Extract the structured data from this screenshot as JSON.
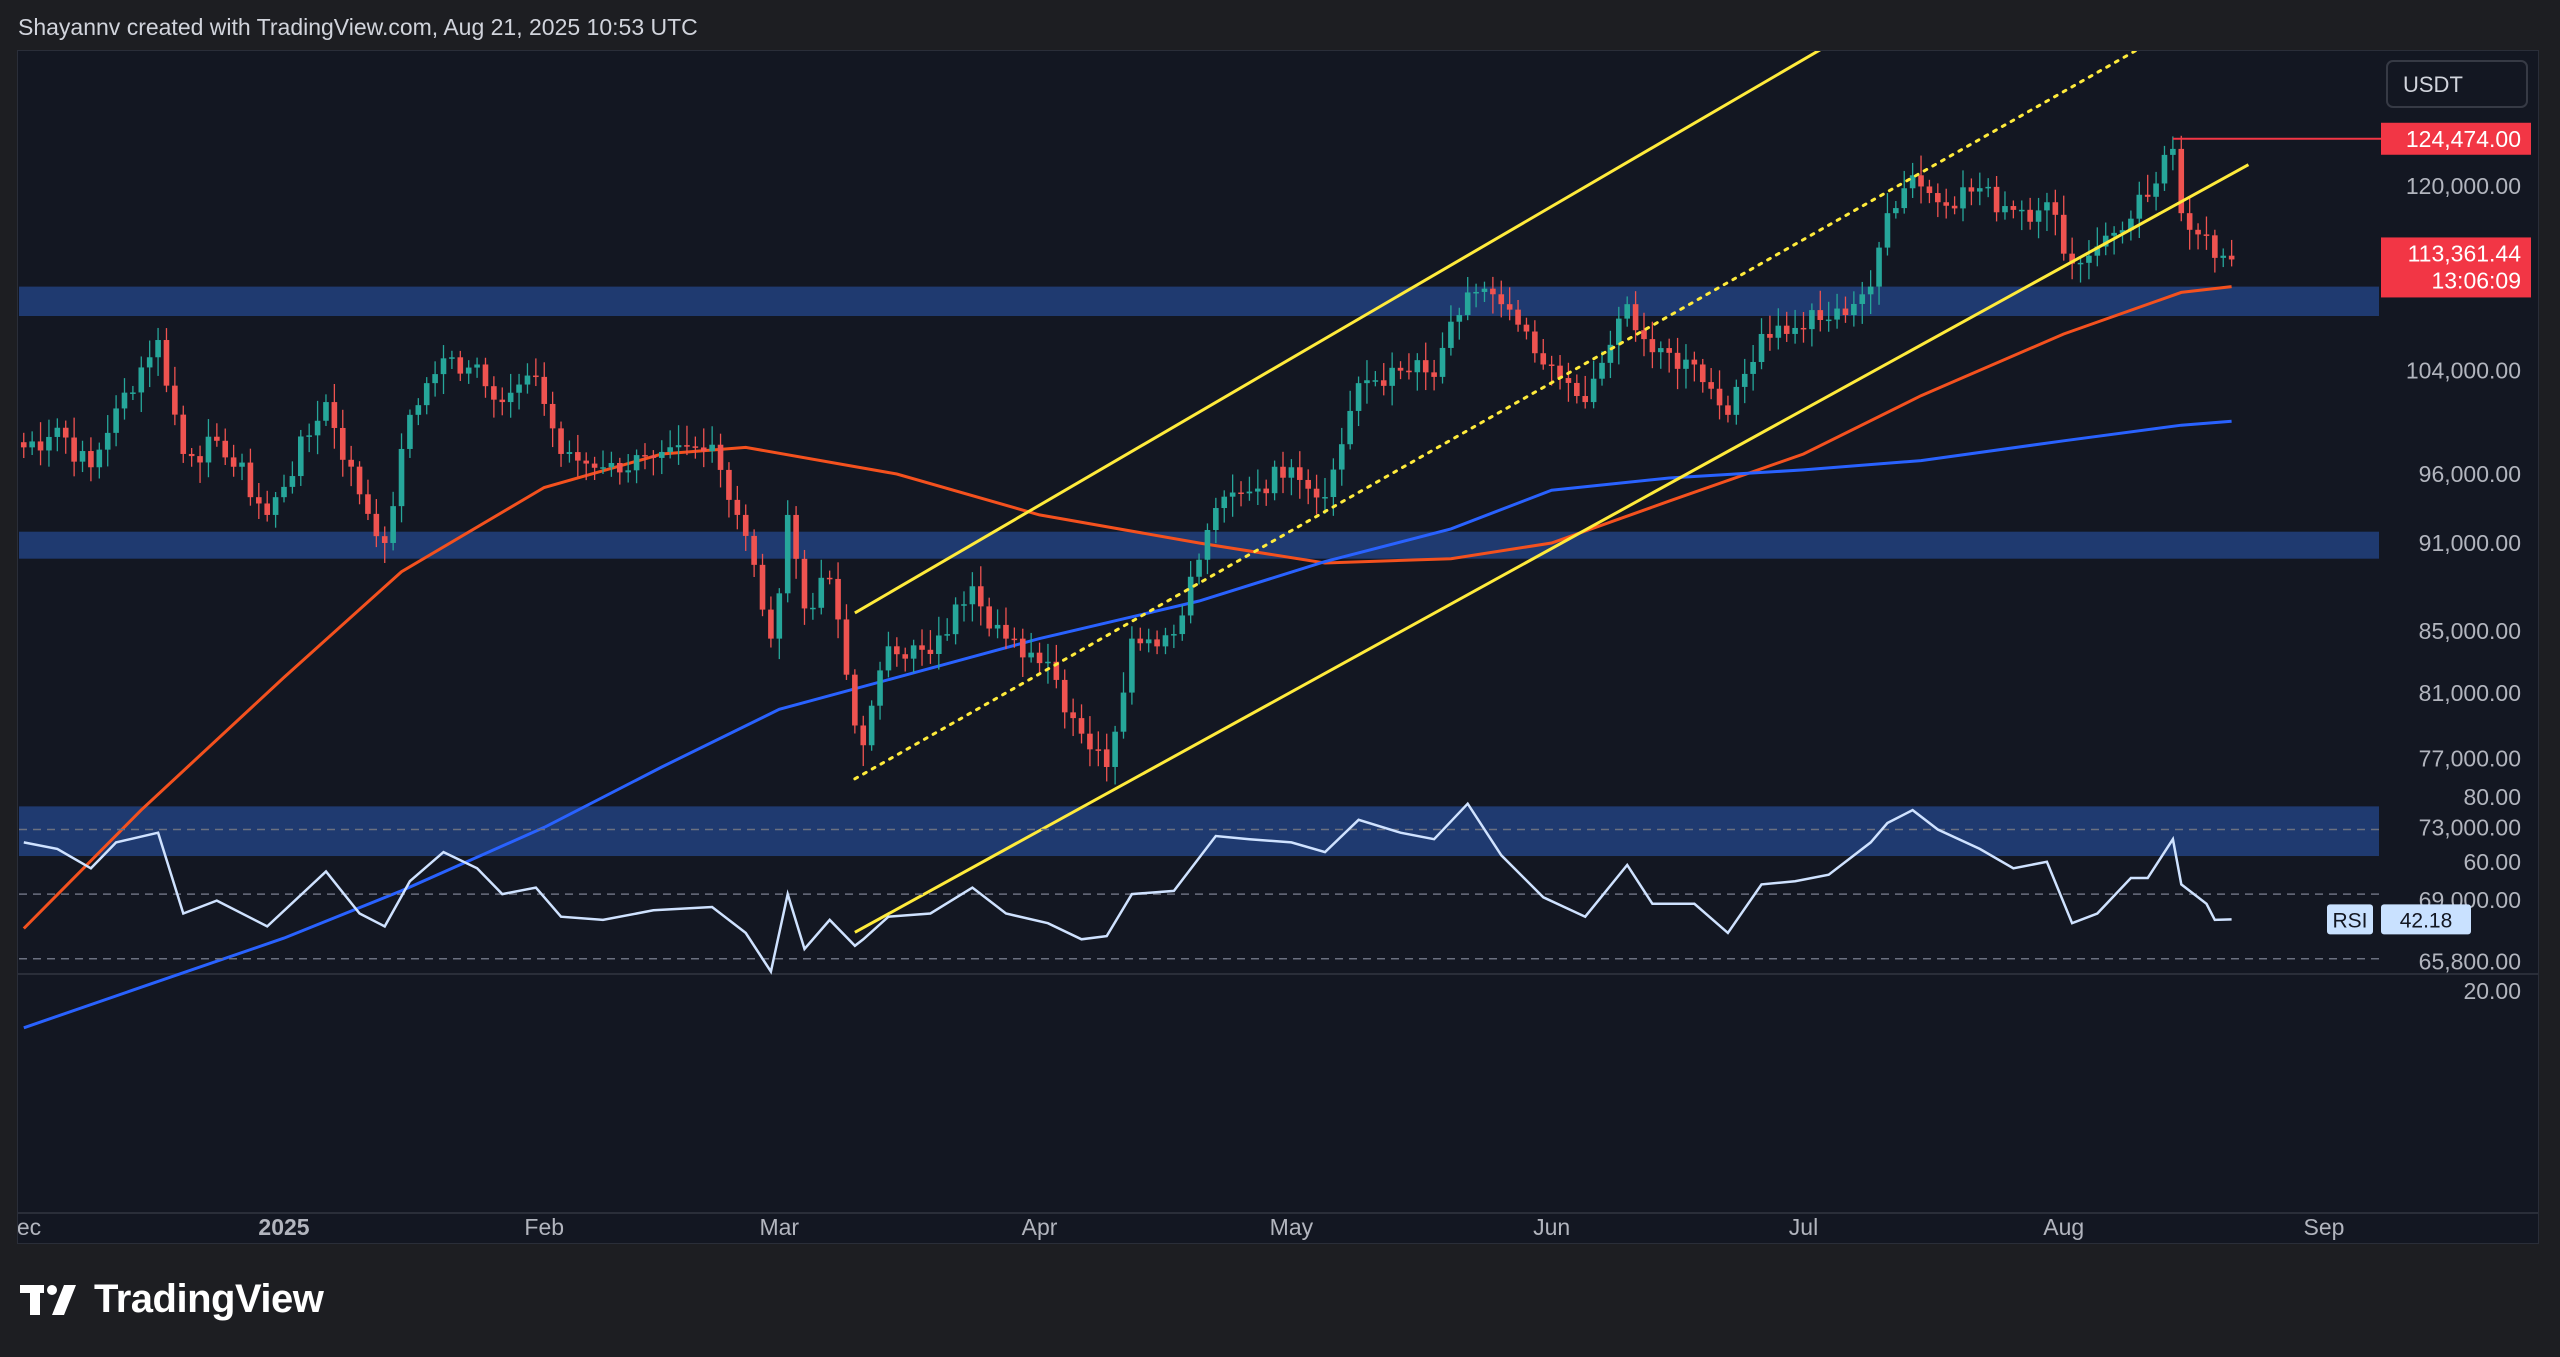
{
  "header": {
    "caption": "Shayannv created with TradingView.com, Aug 21, 2025 10:53 UTC"
  },
  "brand": {
    "name": "TradingView"
  },
  "price_scale": {
    "currency": "USDT",
    "ticks": [
      "120,000.00",
      "104,000.00",
      "96,000.00",
      "91,000.00",
      "85,000.00",
      "81,000.00",
      "77,000.00",
      "73,000.00",
      "69,000.00",
      "65,800.00"
    ],
    "high_label": "124,474.00",
    "last_price_label": "113,361.44",
    "countdown_label": "13:06:09"
  },
  "time_axis": {
    "ticks": [
      "ec",
      "2025",
      "Feb",
      "Mar",
      "Apr",
      "May",
      "Jun",
      "Jul",
      "Aug",
      "Sep"
    ]
  },
  "rsi": {
    "label": "RSI",
    "value": "42.18",
    "ticks": [
      "80.00",
      "60.00",
      "20.00"
    ]
  },
  "colors": {
    "up": "#26a69a",
    "down": "#ef5350",
    "ma_orange": "#f4511e",
    "ma_blue": "#2962ff",
    "channel": "#ffeb3b",
    "zone": "#1f3a70",
    "rsi_line": "#cfe2ff",
    "badge_red": "#f23645"
  },
  "chart_data": [
    {
      "type": "candlestick",
      "title": "",
      "symbol_quote": "USDT",
      "x_range": [
        "2024-12-01",
        "2025-09-08"
      ],
      "y_scale": "log",
      "y_range": [
        63000,
        140000
      ],
      "x_ticks": [
        "Dec",
        "2025",
        "Feb",
        "Mar",
        "Apr",
        "May",
        "Jun",
        "Jul",
        "Aug",
        "Sep"
      ],
      "y_ticks": [
        120000,
        104000,
        96000,
        91000,
        85000,
        81000,
        77000,
        73000,
        69000,
        65800
      ],
      "last_price": 113361.44,
      "recent_high": 124474.0,
      "anchors": [
        [
          "2024-12-01",
          98000
        ],
        [
          "2024-12-05",
          99500
        ],
        [
          "2024-12-09",
          96500
        ],
        [
          "2024-12-12",
          101000
        ],
        [
          "2024-12-17",
          106500
        ],
        [
          "2024-12-20",
          97500
        ],
        [
          "2024-12-24",
          98500
        ],
        [
          "2024-12-30",
          93000
        ],
        [
          "2025-01-06",
          101500
        ],
        [
          "2025-01-10",
          94500
        ],
        [
          "2025-01-13",
          91000
        ],
        [
          "2025-01-16",
          100500
        ],
        [
          "2025-01-20",
          105000
        ],
        [
          "2025-01-24",
          104500
        ],
        [
          "2025-01-27",
          101500
        ],
        [
          "2025-01-31",
          103500
        ],
        [
          "2025-02-03",
          97500
        ],
        [
          "2025-02-08",
          96500
        ],
        [
          "2025-02-14",
          97200
        ],
        [
          "2025-02-21",
          98200
        ],
        [
          "2025-02-25",
          91500
        ],
        [
          "2025-02-28",
          84500
        ],
        [
          "2025-03-02",
          93000
        ],
        [
          "2025-03-04",
          86500
        ],
        [
          "2025-03-07",
          88500
        ],
        [
          "2025-03-10",
          79000
        ],
        [
          "2025-03-11",
          77800
        ],
        [
          "2025-03-14",
          84000
        ],
        [
          "2025-03-19",
          83500
        ],
        [
          "2025-03-24",
          88000
        ],
        [
          "2025-03-28",
          84500
        ],
        [
          "2025-04-02",
          83000
        ],
        [
          "2025-04-06",
          78500
        ],
        [
          "2025-04-09",
          76500
        ],
        [
          "2025-04-12",
          84500
        ],
        [
          "2025-04-17",
          84800
        ],
        [
          "2025-04-22",
          93500
        ],
        [
          "2025-04-26",
          94700
        ],
        [
          "2025-05-01",
          96500
        ],
        [
          "2025-05-05",
          94300
        ],
        [
          "2025-05-09",
          103000
        ],
        [
          "2025-05-14",
          104000
        ],
        [
          "2025-05-18",
          103500
        ],
        [
          "2025-05-22",
          110500
        ],
        [
          "2025-05-26",
          109500
        ],
        [
          "2025-05-31",
          104500
        ],
        [
          "2025-06-05",
          101500
        ],
        [
          "2025-06-10",
          109500
        ],
        [
          "2025-06-13",
          105500
        ],
        [
          "2025-06-18",
          104500
        ],
        [
          "2025-06-22",
          100500
        ],
        [
          "2025-06-26",
          107000
        ],
        [
          "2025-06-30",
          107500
        ],
        [
          "2025-07-04",
          108200
        ],
        [
          "2025-07-09",
          111000
        ],
        [
          "2025-07-11",
          117500
        ],
        [
          "2025-07-14",
          121000
        ],
        [
          "2025-07-17",
          118500
        ],
        [
          "2025-07-22",
          119800
        ],
        [
          "2025-07-26",
          117800
        ],
        [
          "2025-07-30",
          118500
        ],
        [
          "2025-08-02",
          113000
        ],
        [
          "2025-08-05",
          114500
        ],
        [
          "2025-08-09",
          117000
        ],
        [
          "2025-08-11",
          119000
        ],
        [
          "2025-08-14",
          123500
        ],
        [
          "2025-08-15",
          117500
        ],
        [
          "2025-08-18",
          115500
        ],
        [
          "2025-08-19",
          113500
        ],
        [
          "2025-08-21",
          113361
        ]
      ],
      "moving_averages": [
        {
          "name": "",
          "color": "orange",
          "points": [
            [
              "2024-12-01",
              67500
            ],
            [
              "2024-12-15",
              74000
            ],
            [
              "2025-01-01",
              82000
            ],
            [
              "2025-01-15",
              89000
            ],
            [
              "2025-02-01",
              95000
            ],
            [
              "2025-02-15",
              97500
            ],
            [
              "2025-02-25",
              98000
            ],
            [
              "2025-03-15",
              96000
            ],
            [
              "2025-04-01",
              93000
            ],
            [
              "2025-04-20",
              91000
            ],
            [
              "2025-05-05",
              89600
            ],
            [
              "2025-05-20",
              89900
            ],
            [
              "2025-06-01",
              91000
            ],
            [
              "2025-06-15",
              94000
            ],
            [
              "2025-07-01",
              97500
            ],
            [
              "2025-07-15",
              102000
            ],
            [
              "2025-08-01",
              107000
            ],
            [
              "2025-08-15",
              110500
            ],
            [
              "2025-08-21",
              111000
            ]
          ]
        },
        {
          "name": "",
          "color": "blue",
          "points": [
            [
              "2024-12-01",
              62500
            ],
            [
              "2024-12-15",
              64500
            ],
            [
              "2025-01-01",
              67000
            ],
            [
              "2025-01-15",
              69500
            ],
            [
              "2025-02-01",
              73000
            ],
            [
              "2025-02-15",
              76500
            ],
            [
              "2025-03-01",
              80000
            ],
            [
              "2025-03-15",
              82000
            ],
            [
              "2025-04-01",
              84500
            ],
            [
              "2025-04-20",
              87000
            ],
            [
              "2025-05-05",
              89700
            ],
            [
              "2025-05-20",
              92000
            ],
            [
              "2025-06-01",
              94800
            ],
            [
              "2025-06-15",
              95700
            ],
            [
              "2025-07-01",
              96300
            ],
            [
              "2025-07-15",
              97000
            ],
            [
              "2025-08-01",
              98500
            ],
            [
              "2025-08-15",
              99700
            ],
            [
              "2025-08-21",
              100000
            ]
          ]
        }
      ],
      "zones": [
        {
          "low": 108500,
          "high": 111000
        },
        {
          "low": 89900,
          "high": 91800
        },
        {
          "low": 71400,
          "high": 74200
        }
      ],
      "channel_lines": [
        {
          "style": "solid",
          "from": [
            "2025-03-10",
            86200
          ],
          "to": [
            "2025-07-12",
            138000
          ]
        },
        {
          "style": "solid",
          "from": [
            "2025-03-10",
            67300
          ],
          "to": [
            "2025-08-23",
            122000
          ]
        },
        {
          "style": "dotted",
          "from": [
            "2025-03-10",
            75800
          ],
          "to": [
            "2025-08-19",
            138000
          ]
        }
      ]
    },
    {
      "type": "line",
      "title": "RSI",
      "y_range": [
        20,
        80
      ],
      "y_ticks": [
        80,
        60,
        20
      ],
      "reference_levels": [
        70,
        50,
        30
      ],
      "last_value": 42.18,
      "points": [
        [
          "2024-12-01",
          66
        ],
        [
          "2024-12-05",
          64
        ],
        [
          "2024-12-09",
          58
        ],
        [
          "2024-12-12",
          66
        ],
        [
          "2024-12-17",
          69
        ],
        [
          "2024-12-20",
          44
        ],
        [
          "2024-12-24",
          48
        ],
        [
          "2024-12-30",
          40
        ],
        [
          "2025-01-06",
          57
        ],
        [
          "2025-01-10",
          44
        ],
        [
          "2025-01-13",
          40
        ],
        [
          "2025-01-16",
          54
        ],
        [
          "2025-01-20",
          63
        ],
        [
          "2025-01-24",
          58
        ],
        [
          "2025-01-27",
          50
        ],
        [
          "2025-01-31",
          52
        ],
        [
          "2025-02-03",
          43
        ],
        [
          "2025-02-08",
          42
        ],
        [
          "2025-02-14",
          45
        ],
        [
          "2025-02-21",
          46
        ],
        [
          "2025-02-25",
          38
        ],
        [
          "2025-02-28",
          26
        ],
        [
          "2025-03-02",
          50
        ],
        [
          "2025-03-04",
          33
        ],
        [
          "2025-03-07",
          42
        ],
        [
          "2025-03-10",
          34
        ],
        [
          "2025-03-11",
          36
        ],
        [
          "2025-03-14",
          43
        ],
        [
          "2025-03-19",
          44
        ],
        [
          "2025-03-24",
          52
        ],
        [
          "2025-03-28",
          44
        ],
        [
          "2025-04-02",
          41
        ],
        [
          "2025-04-06",
          36
        ],
        [
          "2025-04-09",
          37
        ],
        [
          "2025-04-12",
          50
        ],
        [
          "2025-04-17",
          51
        ],
        [
          "2025-04-22",
          68
        ],
        [
          "2025-04-26",
          67
        ],
        [
          "2025-05-01",
          66
        ],
        [
          "2025-05-05",
          63
        ],
        [
          "2025-05-09",
          73
        ],
        [
          "2025-05-14",
          69
        ],
        [
          "2025-05-18",
          67
        ],
        [
          "2025-05-22",
          78
        ],
        [
          "2025-05-26",
          62
        ],
        [
          "2025-05-31",
          49
        ],
        [
          "2025-06-05",
          43
        ],
        [
          "2025-06-10",
          59
        ],
        [
          "2025-06-13",
          47
        ],
        [
          "2025-06-18",
          47
        ],
        [
          "2025-06-22",
          38
        ],
        [
          "2025-06-26",
          53
        ],
        [
          "2025-06-30",
          54
        ],
        [
          "2025-07-04",
          56
        ],
        [
          "2025-07-09",
          66
        ],
        [
          "2025-07-11",
          72
        ],
        [
          "2025-07-14",
          76
        ],
        [
          "2025-07-17",
          70
        ],
        [
          "2025-07-22",
          64
        ],
        [
          "2025-07-26",
          58
        ],
        [
          "2025-07-30",
          60
        ],
        [
          "2025-08-02",
          41
        ],
        [
          "2025-08-05",
          44
        ],
        [
          "2025-08-09",
          55
        ],
        [
          "2025-08-11",
          55
        ],
        [
          "2025-08-14",
          67
        ],
        [
          "2025-08-15",
          53
        ],
        [
          "2025-08-18",
          47
        ],
        [
          "2025-08-19",
          42
        ],
        [
          "2025-08-21",
          42.18
        ]
      ]
    }
  ]
}
